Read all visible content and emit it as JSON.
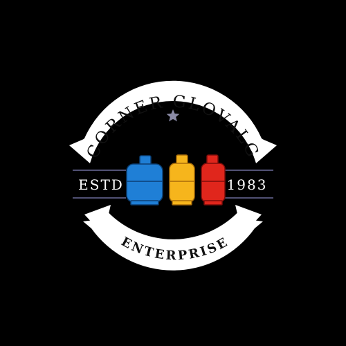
{
  "logo": {
    "brand_name": "CORNER GLOVALG",
    "tagline": "ENTERPRISE",
    "estd_label": "ESTD",
    "estd_year": "1983",
    "star_icon": "star-icon",
    "cylinder_icons": [
      "blue-gas-cylinder-icon",
      "yellow-gas-cylinder-icon",
      "red-gas-cylinder-icon"
    ]
  },
  "colors": {
    "background": "#000000",
    "ribbon": "#ffffff",
    "ribbon_text": "#111111",
    "rule_line": "#6c6c9a",
    "star": "#8a8aa6",
    "cylinder_blue": "#1f7fd6",
    "cylinder_yellow": "#f6b51c",
    "cylinder_red": "#e0261c"
  }
}
